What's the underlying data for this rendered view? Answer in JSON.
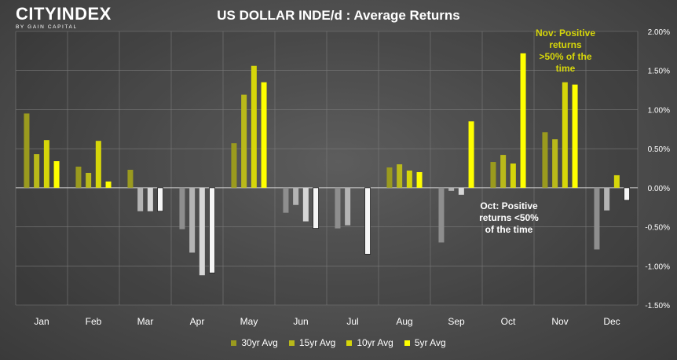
{
  "header": {
    "logo_text": "CITYINDEX",
    "logo_sub": "BY GAIN CAPITAL",
    "title": "US DOLLAR INDE/d : Average Returns"
  },
  "colors": {
    "pos": [
      "#9a9a1e",
      "#b9b91a",
      "#d6d60a",
      "#ffff00"
    ],
    "neg": [
      "#8e8e8e",
      "#b4b4b4",
      "#d6d6d6",
      "#f6f6f6"
    ]
  },
  "chart_data": {
    "type": "bar",
    "title": "US DOLLAR INDE/d : Average Returns",
    "xlabel": "",
    "ylabel": "",
    "ylim": [
      -1.5,
      2.0
    ],
    "yticks": [
      2.0,
      1.5,
      1.0,
      0.5,
      0.0,
      -0.5,
      -1.0,
      -1.5
    ],
    "ytick_labels": [
      "2.00%",
      "1.50%",
      "1.00%",
      "0.50%",
      "0.00%",
      "-0.50%",
      "-1.00%",
      "-1.50%"
    ],
    "grid": true,
    "legend_position": "bottom",
    "categories": [
      "Jan",
      "Feb",
      "Mar",
      "Apr",
      "May",
      "Jun",
      "Jul",
      "Aug",
      "Sep",
      "Oct",
      "Nov",
      "Dec"
    ],
    "series": [
      {
        "name": "30yr Avg",
        "values": [
          0.95,
          0.27,
          0.23,
          -0.53,
          0.57,
          -0.32,
          -0.52,
          0.26,
          -0.7,
          0.33,
          0.71,
          -0.79
        ]
      },
      {
        "name": "15yr Avg",
        "values": [
          0.43,
          0.19,
          -0.3,
          -0.83,
          1.19,
          -0.22,
          -0.48,
          0.3,
          -0.04,
          0.42,
          0.62,
          -0.29
        ]
      },
      {
        "name": "10yr Avg",
        "values": [
          0.61,
          0.6,
          -0.3,
          -1.12,
          1.56,
          -0.43,
          0.0,
          0.22,
          -0.09,
          0.31,
          1.35,
          0.16
        ]
      },
      {
        "name": "5yr Avg",
        "values": [
          0.34,
          0.08,
          -0.3,
          -1.09,
          1.35,
          -0.52,
          -0.85,
          0.2,
          0.85,
          1.72,
          1.32,
          -0.16
        ]
      }
    ],
    "annotations": [
      {
        "text": [
          "Nov: Positive",
          "returns",
          ">50% of the",
          "time"
        ],
        "color": "#d6d60a"
      },
      {
        "text": [
          "Oct: Positive",
          "returns <50%",
          "of the time"
        ],
        "color": "#ffffff"
      }
    ]
  }
}
